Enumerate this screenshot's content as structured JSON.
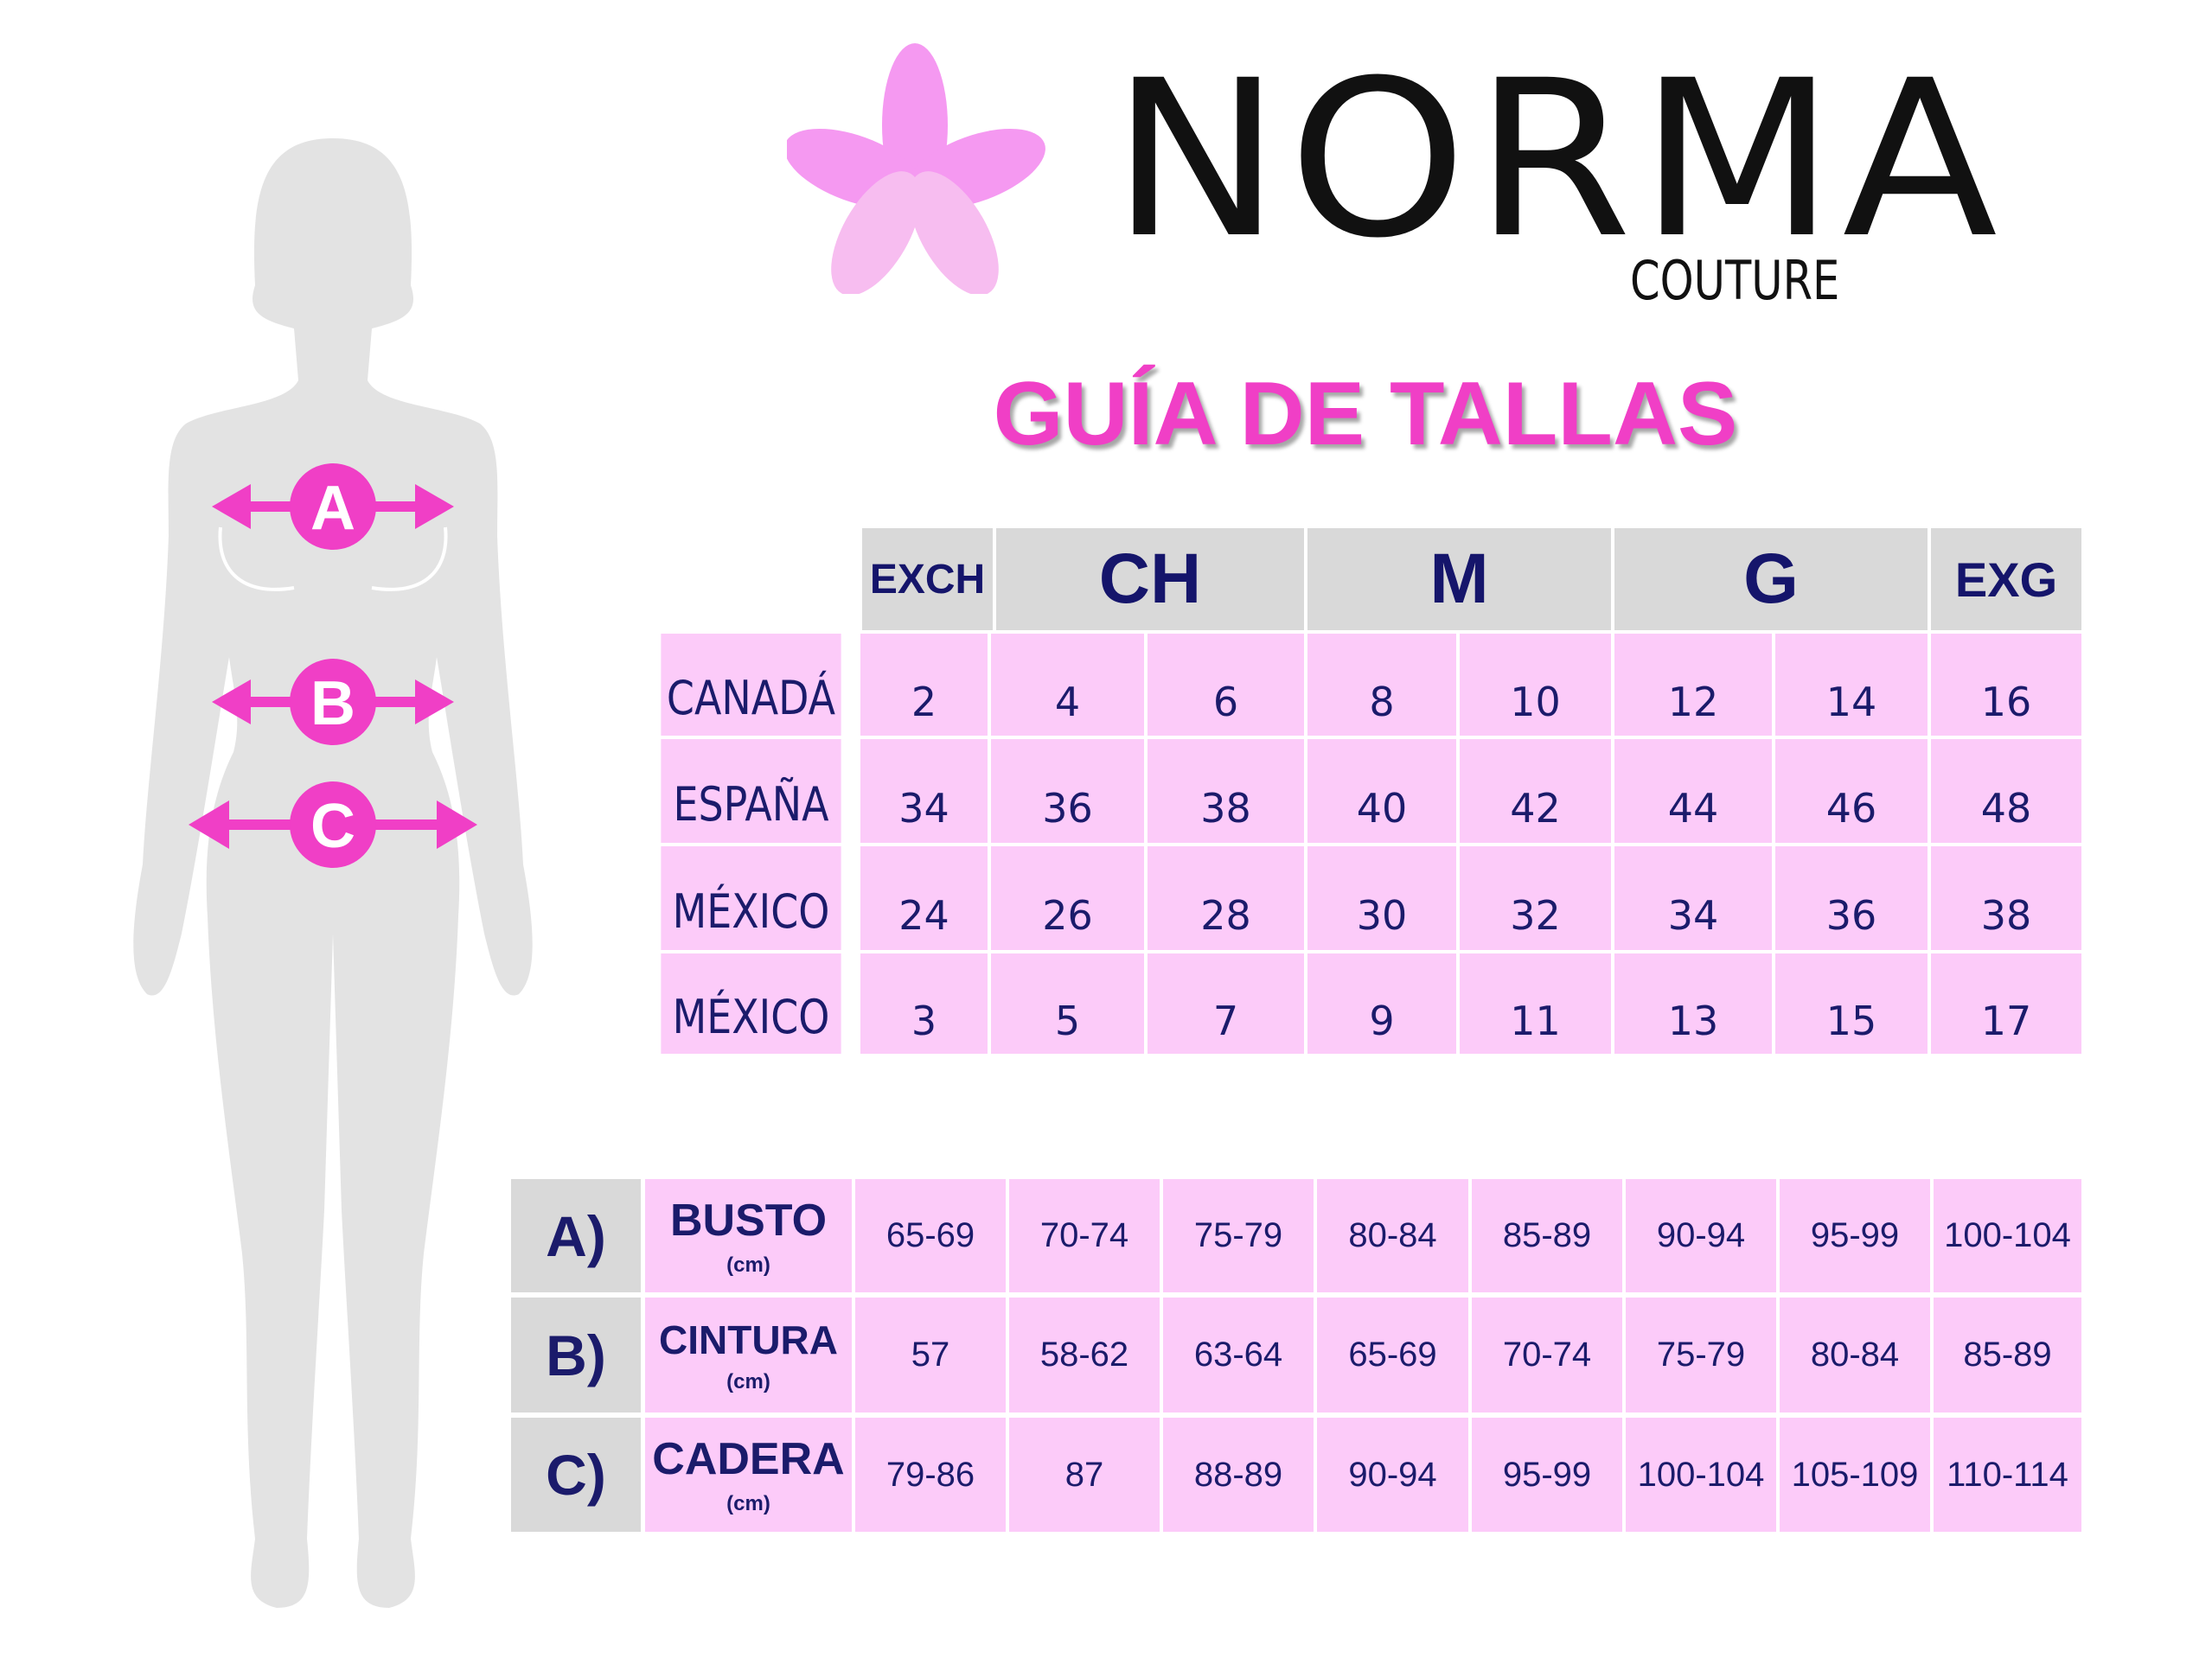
{
  "brand": {
    "name": "NORMA",
    "subtitle": "COUTURE",
    "logo_icon": "flower-icon",
    "flower_colors": [
      "#f48ef0",
      "#f7b6ef"
    ]
  },
  "title": "GUÍA DE TALLAS",
  "colors": {
    "accent": "#f03fc6",
    "text": "#1b1b6b",
    "header_bg": "#d9d9d9",
    "cell_bg": "#fccbf9",
    "silhouette": "#e3e3e3"
  },
  "figure": {
    "markers": [
      "A",
      "B",
      "C"
    ]
  },
  "size_table": {
    "headers": [
      "EXCH",
      "CH",
      "M",
      "G",
      "EXG"
    ],
    "rows": [
      {
        "label": "CANADÁ",
        "values": [
          "2",
          "4",
          "6",
          "8",
          "10",
          "12",
          "14",
          "16"
        ]
      },
      {
        "label": "ESPAÑA",
        "values": [
          "34",
          "36",
          "38",
          "40",
          "42",
          "44",
          "46",
          "48"
        ]
      },
      {
        "label": "MÉXICO",
        "values": [
          "24",
          "26",
          "28",
          "30",
          "32",
          "34",
          "36",
          "38"
        ]
      },
      {
        "label": "MÉXICO",
        "values": [
          "3",
          "5",
          "7",
          "9",
          "11",
          "13",
          "15",
          "17"
        ]
      }
    ]
  },
  "measure_table": {
    "rows": [
      {
        "letter": "A)",
        "label": "BUSTO",
        "unit": "(cm)",
        "values": [
          "65-69",
          "70-74",
          "75-79",
          "80-84",
          "85-89",
          "90-94",
          "95-99",
          "100-104"
        ]
      },
      {
        "letter": "B)",
        "label": "CINTURA",
        "unit": "(cm)",
        "values": [
          "57",
          "58-62",
          "63-64",
          "65-69",
          "70-74",
          "75-79",
          "80-84",
          "85-89"
        ]
      },
      {
        "letter": "C)",
        "label": "CADERA",
        "unit": "(cm)",
        "values": [
          "79-86",
          "87",
          "88-89",
          "90-94",
          "95-99",
          "100-104",
          "105-109",
          "110-114"
        ]
      }
    ]
  }
}
